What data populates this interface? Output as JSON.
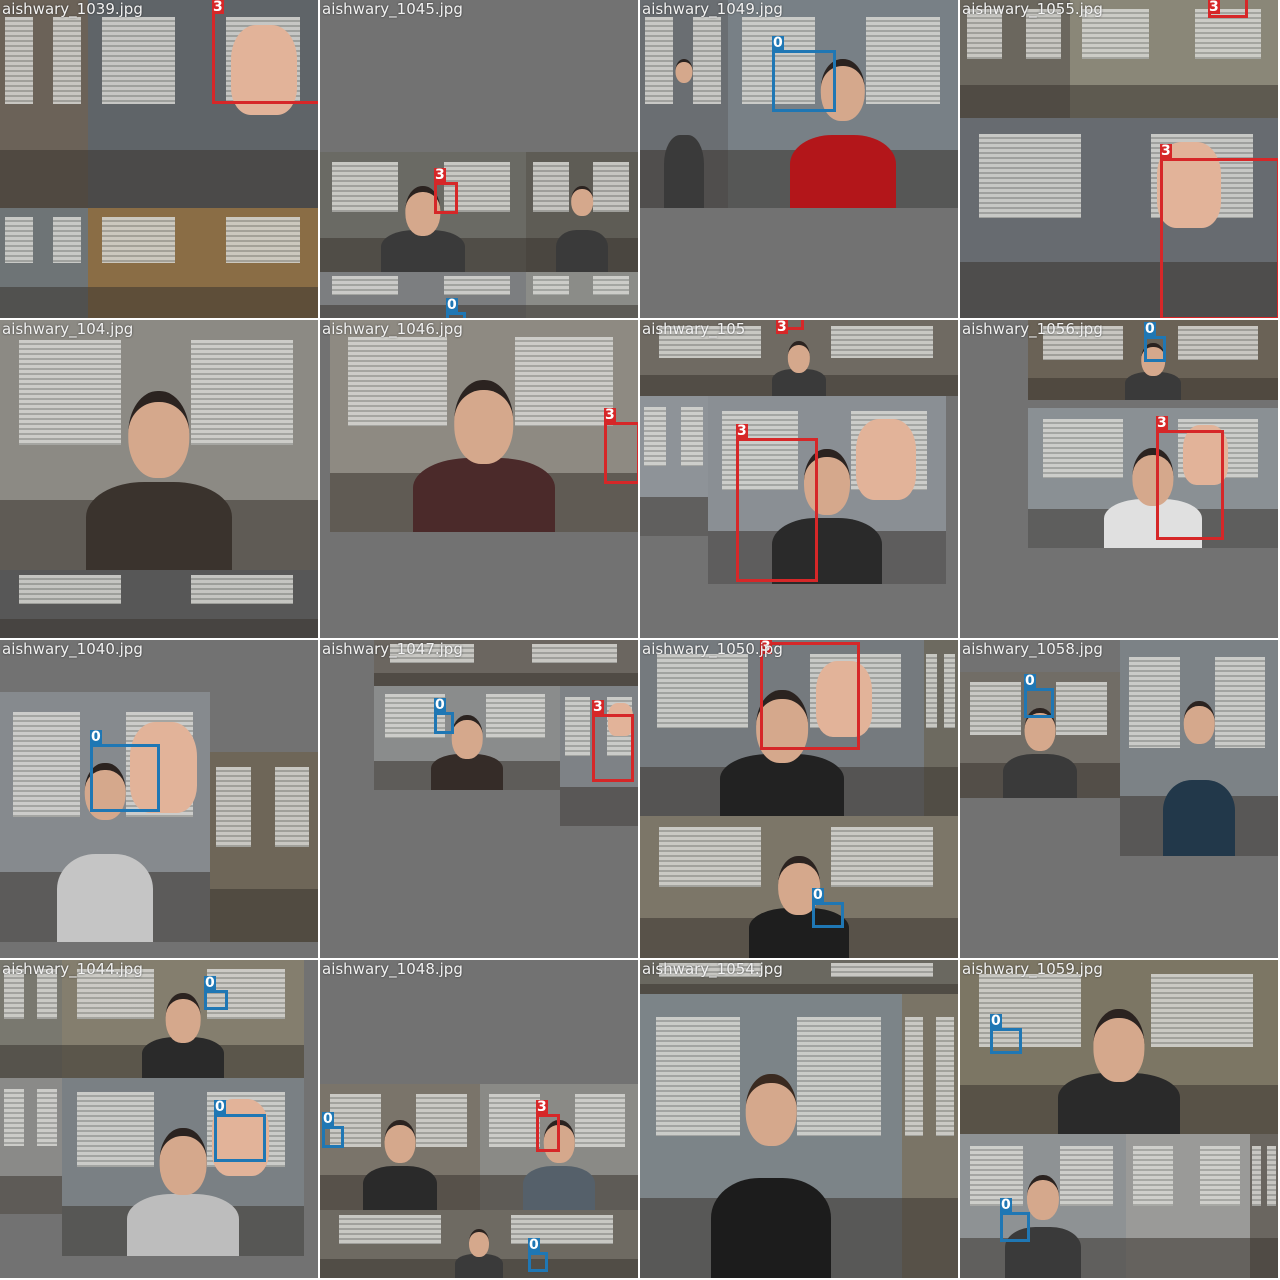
{
  "tiles": [
    {
      "filename": "aishwary_1039.jpg",
      "labels": [
        "3"
      ],
      "detections": [
        {
          "class_id": "3",
          "color": "#d62728"
        }
      ]
    },
    {
      "filename": "aishwary_1045.jpg",
      "labels": [
        "3",
        "0"
      ],
      "detections": [
        {
          "class_id": "3",
          "color": "#d62728"
        },
        {
          "class_id": "0",
          "color": "#1f77b4"
        }
      ]
    },
    {
      "filename": "aishwary_1049.jpg",
      "labels": [
        "0"
      ],
      "detections": [
        {
          "class_id": "0",
          "color": "#1f77b4"
        }
      ]
    },
    {
      "filename": "aishwary_1055.jpg",
      "labels": [
        "3",
        "3"
      ],
      "detections": [
        {
          "class_id": "3",
          "color": "#d62728"
        },
        {
          "class_id": "3",
          "color": "#d62728"
        }
      ]
    },
    {
      "filename": "aishwary_104.jpg",
      "labels": [],
      "detections": []
    },
    {
      "filename": "aishwary_1046.jpg",
      "labels": [
        "3"
      ],
      "detections": [
        {
          "class_id": "3",
          "color": "#d62728"
        }
      ]
    },
    {
      "filename": "aishwary_105",
      "labels": [
        "3",
        "3"
      ],
      "detections": [
        {
          "class_id": "3",
          "color": "#d62728"
        },
        {
          "class_id": "3",
          "color": "#d62728"
        }
      ]
    },
    {
      "filename": "aishwary_1056.jpg",
      "labels": [
        "0",
        "3"
      ],
      "detections": [
        {
          "class_id": "0",
          "color": "#1f77b4"
        },
        {
          "class_id": "3",
          "color": "#d62728"
        }
      ]
    },
    {
      "filename": "aishwary_1040.jpg",
      "labels": [
        "0"
      ],
      "detections": [
        {
          "class_id": "0",
          "color": "#1f77b4"
        }
      ]
    },
    {
      "filename": "aishwary_1047.jpg",
      "labels": [
        "0",
        "3"
      ],
      "detections": [
        {
          "class_id": "0",
          "color": "#1f77b4"
        },
        {
          "class_id": "3",
          "color": "#d62728"
        }
      ]
    },
    {
      "filename": "aishwary_1050.jpg",
      "labels": [
        "3",
        "0"
      ],
      "detections": [
        {
          "class_id": "3",
          "color": "#d62728"
        },
        {
          "class_id": "0",
          "color": "#1f77b4"
        }
      ]
    },
    {
      "filename": "aishwary_1058.jpg",
      "labels": [
        "0"
      ],
      "detections": [
        {
          "class_id": "0",
          "color": "#1f77b4"
        }
      ]
    },
    {
      "filename": "aishwary_1044.jpg",
      "labels": [
        "0",
        "0"
      ],
      "detections": [
        {
          "class_id": "0",
          "color": "#1f77b4"
        },
        {
          "class_id": "0",
          "color": "#1f77b4"
        }
      ]
    },
    {
      "filename": "aishwary_1048.jpg",
      "labels": [
        "0",
        "3",
        "0"
      ],
      "detections": [
        {
          "class_id": "0",
          "color": "#1f77b4"
        },
        {
          "class_id": "3",
          "color": "#d62728"
        },
        {
          "class_id": "0",
          "color": "#1f77b4"
        }
      ]
    },
    {
      "filename": "aishwary_1054.jpg",
      "labels": [],
      "detections": []
    },
    {
      "filename": "aishwary_1059.jpg",
      "labels": [
        "0",
        "0"
      ],
      "detections": [
        {
          "class_id": "0",
          "color": "#1f77b4"
        },
        {
          "class_id": "0",
          "color": "#1f77b4"
        }
      ]
    }
  ]
}
